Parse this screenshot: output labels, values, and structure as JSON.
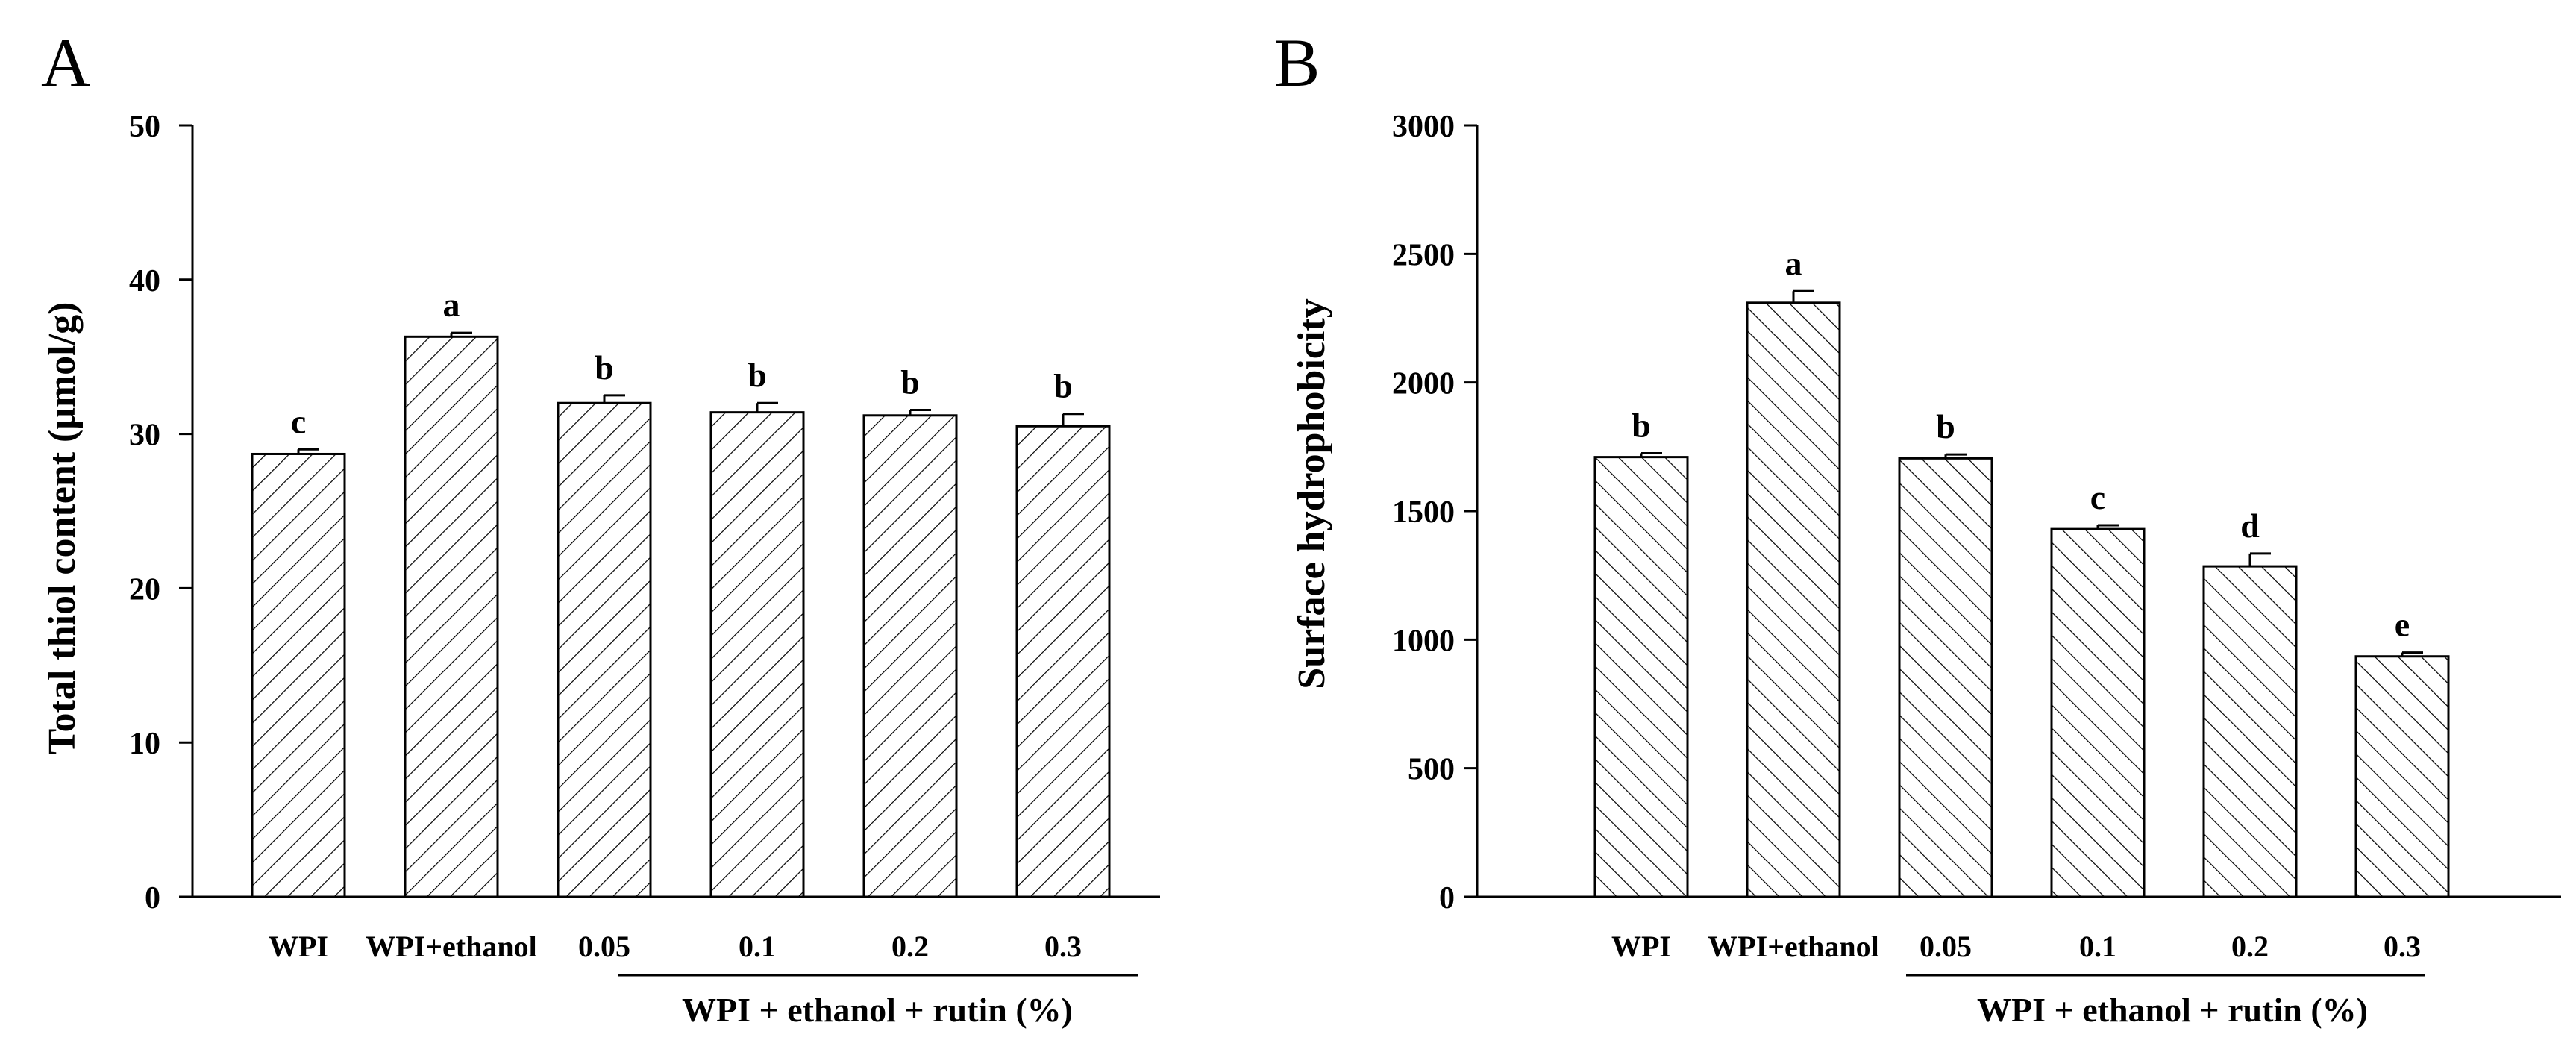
{
  "chart_data": [
    {
      "panel": "A",
      "type": "bar",
      "title": "",
      "xlabel": "",
      "ylabel": "Total thiol content (μmol/g)",
      "ylim": [
        0,
        50
      ],
      "yticks": [
        0,
        10,
        20,
        30,
        40,
        50
      ],
      "categories": [
        "WPI",
        "WPI+ethanol",
        "0.05",
        "0.1",
        "0.2",
        "0.3"
      ],
      "values": [
        28.7,
        36.3,
        32.0,
        31.4,
        31.2,
        30.5
      ],
      "errors": [
        0.3,
        0.25,
        0.5,
        0.6,
        0.35,
        0.8
      ],
      "significance": [
        "c",
        "a",
        "b",
        "b",
        "b",
        "b"
      ],
      "group_label": "WPI + ethanol + rutin (%)",
      "group_span": [
        2,
        5
      ],
      "bar_pattern": "hatch-forward",
      "grid": false
    },
    {
      "panel": "B",
      "type": "bar",
      "title": "",
      "xlabel": "",
      "ylabel": "Surface hydrophobicity",
      "ylim": [
        0,
        3000
      ],
      "yticks": [
        0,
        500,
        1000,
        1500,
        2000,
        2500,
        3000
      ],
      "categories": [
        "WPI",
        "WPI+ethanol",
        "0.05",
        "0.1",
        "0.2",
        "0.3"
      ],
      "values": [
        1710,
        2310,
        1705,
        1430,
        1285,
        935
      ],
      "errors": [
        15,
        45,
        15,
        15,
        50,
        15
      ],
      "significance": [
        "b",
        "a",
        "b",
        "c",
        "d",
        "e"
      ],
      "group_label": "WPI + ethanol + rutin (%)",
      "group_span": [
        2,
        5
      ],
      "bar_pattern": "hatch-backward",
      "grid": false
    }
  ]
}
